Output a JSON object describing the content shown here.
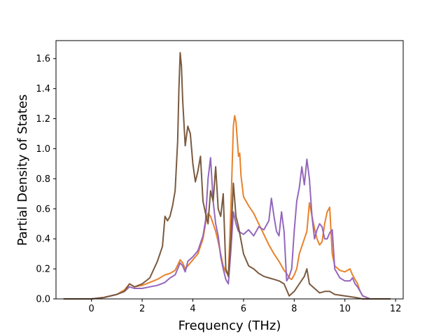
{
  "chart_data": {
    "type": "line",
    "xlabel": "Frequency (THz)",
    "ylabel": "Partial Density of States",
    "xlim": [
      -1.4,
      12.3
    ],
    "ylim": [
      0.0,
      1.72
    ],
    "xticks": [
      "0",
      "2",
      "4",
      "6",
      "8",
      "10",
      "12"
    ],
    "yticks": [
      "0.0",
      "0.2",
      "0.4",
      "0.6",
      "0.8",
      "1.0",
      "1.2",
      "1.4",
      "1.6"
    ],
    "grid": false,
    "series": [
      {
        "color": "#e8822a",
        "x": [
          -1.1,
          0.0,
          0.5,
          1.0,
          1.3,
          1.5,
          1.7,
          2.0,
          2.3,
          2.6,
          2.9,
          3.1,
          3.3,
          3.5,
          3.6,
          3.7,
          3.8,
          4.0,
          4.2,
          4.4,
          4.5,
          4.6,
          4.7,
          4.8,
          4.9,
          5.0,
          5.1,
          5.2,
          5.3,
          5.4,
          5.5,
          5.6,
          5.65,
          5.7,
          5.8,
          5.85,
          5.9,
          6.0,
          6.2,
          6.4,
          6.6,
          6.8,
          7.0,
          7.2,
          7.4,
          7.5,
          7.6,
          7.7,
          7.8,
          7.9,
          8.0,
          8.1,
          8.2,
          8.3,
          8.4,
          8.5,
          8.6,
          8.7,
          8.8,
          8.9,
          9.0,
          9.1,
          9.2,
          9.3,
          9.4,
          9.5,
          9.6,
          9.8,
          10.0,
          10.2,
          10.3,
          10.4,
          10.5,
          10.6,
          10.7,
          11.0,
          11.8
        ],
        "y": [
          0.0,
          0.0,
          0.01,
          0.03,
          0.06,
          0.1,
          0.08,
          0.09,
          0.11,
          0.13,
          0.16,
          0.17,
          0.19,
          0.26,
          0.24,
          0.2,
          0.22,
          0.26,
          0.3,
          0.4,
          0.5,
          0.57,
          0.55,
          0.5,
          0.45,
          0.38,
          0.3,
          0.22,
          0.18,
          0.16,
          0.6,
          1.15,
          1.22,
          1.18,
          0.95,
          0.97,
          0.82,
          0.68,
          0.62,
          0.57,
          0.5,
          0.43,
          0.36,
          0.3,
          0.25,
          0.22,
          0.19,
          0.17,
          0.14,
          0.13,
          0.16,
          0.2,
          0.3,
          0.35,
          0.4,
          0.45,
          0.64,
          0.55,
          0.47,
          0.4,
          0.36,
          0.38,
          0.5,
          0.58,
          0.61,
          0.3,
          0.22,
          0.19,
          0.18,
          0.2,
          0.16,
          0.13,
          0.1,
          0.05,
          0.02,
          0.0,
          0.0
        ]
      },
      {
        "color": "#9467bd",
        "x": [
          -1.1,
          0.0,
          0.5,
          1.0,
          1.3,
          1.5,
          1.7,
          2.0,
          2.3,
          2.6,
          2.9,
          3.1,
          3.3,
          3.5,
          3.6,
          3.7,
          3.8,
          4.0,
          4.2,
          4.4,
          4.5,
          4.6,
          4.7,
          4.8,
          4.9,
          5.0,
          5.1,
          5.2,
          5.3,
          5.4,
          5.5,
          5.6,
          5.7,
          5.8,
          6.0,
          6.2,
          6.4,
          6.6,
          6.8,
          7.0,
          7.1,
          7.2,
          7.3,
          7.4,
          7.5,
          7.6,
          7.7,
          7.8,
          7.9,
          8.0,
          8.1,
          8.2,
          8.3,
          8.4,
          8.5,
          8.6,
          8.7,
          8.8,
          8.9,
          9.0,
          9.1,
          9.2,
          9.3,
          9.4,
          9.5,
          9.6,
          9.8,
          10.0,
          10.2,
          10.3,
          10.4,
          10.5,
          10.6,
          10.7,
          11.0,
          11.8
        ],
        "y": [
          0.0,
          0.0,
          0.01,
          0.03,
          0.05,
          0.08,
          0.07,
          0.07,
          0.08,
          0.09,
          0.11,
          0.14,
          0.16,
          0.24,
          0.22,
          0.18,
          0.25,
          0.28,
          0.32,
          0.42,
          0.52,
          0.8,
          0.94,
          0.65,
          0.5,
          0.42,
          0.28,
          0.2,
          0.13,
          0.1,
          0.32,
          0.58,
          0.5,
          0.45,
          0.43,
          0.46,
          0.42,
          0.48,
          0.46,
          0.52,
          0.67,
          0.55,
          0.45,
          0.42,
          0.58,
          0.45,
          0.12,
          0.15,
          0.2,
          0.45,
          0.65,
          0.74,
          0.88,
          0.76,
          0.93,
          0.8,
          0.55,
          0.4,
          0.46,
          0.5,
          0.48,
          0.4,
          0.4,
          0.44,
          0.46,
          0.2,
          0.14,
          0.12,
          0.12,
          0.14,
          0.1,
          0.08,
          0.05,
          0.02,
          0.0,
          0.0
        ]
      },
      {
        "color": "#7b5a3f",
        "x": [
          -1.1,
          0.0,
          0.5,
          1.0,
          1.3,
          1.5,
          1.7,
          2.0,
          2.3,
          2.6,
          2.8,
          2.9,
          3.0,
          3.1,
          3.2,
          3.3,
          3.4,
          3.45,
          3.5,
          3.55,
          3.6,
          3.7,
          3.8,
          3.9,
          4.0,
          4.1,
          4.2,
          4.3,
          4.4,
          4.5,
          4.6,
          4.7,
          4.8,
          4.9,
          5.0,
          5.1,
          5.2,
          5.3,
          5.4,
          5.5,
          5.6,
          5.7,
          5.8,
          6.0,
          6.2,
          6.4,
          6.6,
          6.8,
          7.0,
          7.2,
          7.4,
          7.6,
          7.8,
          8.0,
          8.2,
          8.4,
          8.5,
          8.6,
          8.8,
          9.0,
          9.2,
          9.4,
          9.6,
          10.0,
          10.4,
          10.7,
          11.0,
          11.8
        ],
        "y": [
          0.0,
          0.0,
          0.01,
          0.03,
          0.05,
          0.1,
          0.08,
          0.1,
          0.14,
          0.25,
          0.35,
          0.55,
          0.52,
          0.55,
          0.62,
          0.72,
          1.05,
          1.4,
          1.64,
          1.55,
          1.32,
          1.02,
          1.15,
          1.1,
          0.9,
          0.78,
          0.85,
          0.95,
          0.65,
          0.57,
          0.5,
          0.72,
          0.65,
          0.88,
          0.6,
          0.55,
          0.7,
          0.2,
          0.15,
          0.4,
          0.77,
          0.55,
          0.48,
          0.3,
          0.22,
          0.2,
          0.17,
          0.15,
          0.14,
          0.13,
          0.12,
          0.1,
          0.02,
          0.05,
          0.1,
          0.15,
          0.2,
          0.1,
          0.07,
          0.04,
          0.05,
          0.05,
          0.03,
          0.02,
          0.01,
          0.0,
          0.0,
          0.0
        ]
      }
    ]
  }
}
